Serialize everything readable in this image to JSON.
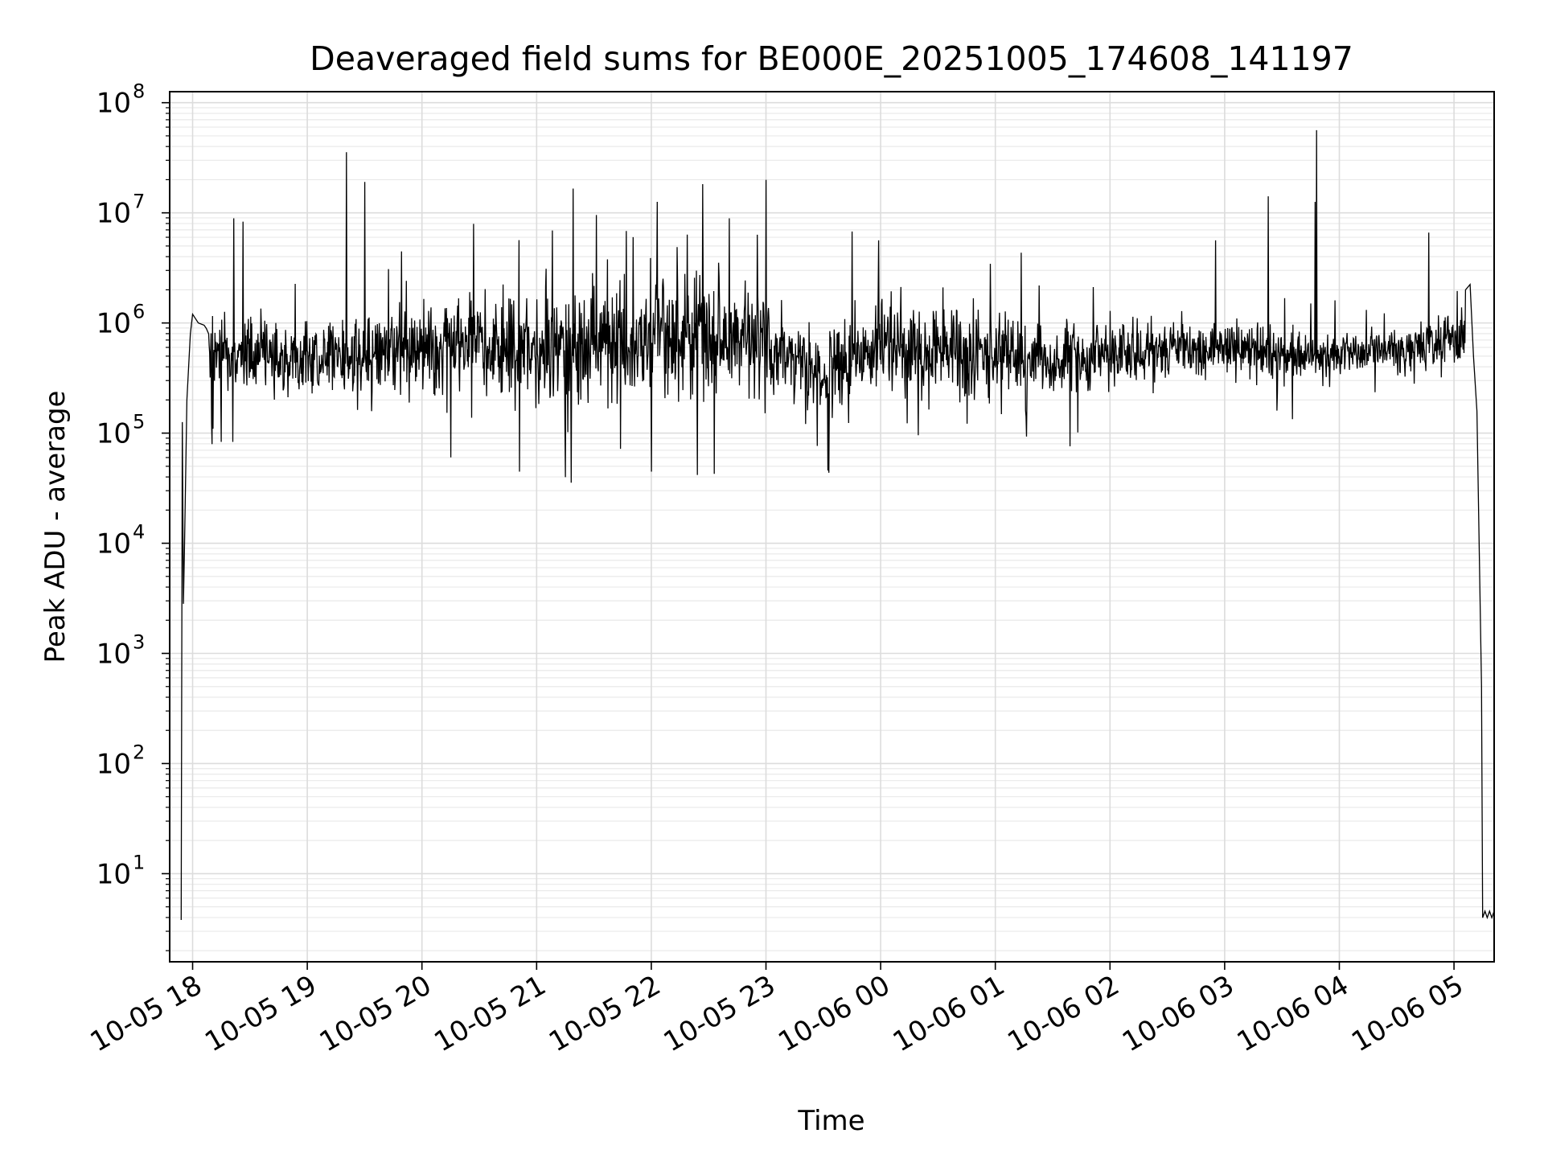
{
  "chart_data": {
    "type": "line",
    "title": "Deaveraged field sums for BE000E_20251005_174608_141197",
    "xlabel": "Time",
    "ylabel": "Peak ADU - average",
    "yscale": "log",
    "ylim_log10": [
      0.2,
      8.1
    ],
    "xlim_hours": [
      -0.2,
      11.35
    ],
    "grid": true,
    "line_color": "#000000",
    "x_ticks": [
      {
        "h": 0,
        "label": "10-05 18"
      },
      {
        "h": 1,
        "label": "10-05 19"
      },
      {
        "h": 2,
        "label": "10-05 20"
      },
      {
        "h": 3,
        "label": "10-05 21"
      },
      {
        "h": 4,
        "label": "10-05 22"
      },
      {
        "h": 5,
        "label": "10-05 23"
      },
      {
        "h": 6,
        "label": "10-06 00"
      },
      {
        "h": 7,
        "label": "10-06 01"
      },
      {
        "h": 8,
        "label": "10-06 02"
      },
      {
        "h": 9,
        "label": "10-06 03"
      },
      {
        "h": 10,
        "label": "10-06 04"
      },
      {
        "h": 11,
        "label": "10-06 05"
      }
    ],
    "y_ticks": [
      {
        "exp": 1,
        "base": "10",
        "sup": "1"
      },
      {
        "exp": 2,
        "base": "10",
        "sup": "2"
      },
      {
        "exp": 3,
        "base": "10",
        "sup": "3"
      },
      {
        "exp": 4,
        "base": "10",
        "sup": "4"
      },
      {
        "exp": 5,
        "base": "10",
        "sup": "5"
      },
      {
        "exp": 6,
        "base": "10",
        "sup": "6"
      },
      {
        "exp": 7,
        "base": "10",
        "sup": "7"
      },
      {
        "exp": 8,
        "base": "10",
        "sup": "8"
      }
    ],
    "envelope_log10": [
      {
        "h": 0.0,
        "lo": 5.45,
        "hi": 6.05
      },
      {
        "h": 0.5,
        "lo": 5.25,
        "hi": 6.15
      },
      {
        "h": 1.0,
        "lo": 5.3,
        "hi": 6.05
      },
      {
        "h": 1.5,
        "lo": 5.3,
        "hi": 6.2
      },
      {
        "h": 2.0,
        "lo": 5.35,
        "hi": 6.2
      },
      {
        "h": 2.5,
        "lo": 5.3,
        "hi": 6.4
      },
      {
        "h": 3.0,
        "lo": 5.15,
        "hi": 6.35
      },
      {
        "h": 3.5,
        "lo": 5.2,
        "hi": 6.4
      },
      {
        "h": 4.0,
        "lo": 5.15,
        "hi": 6.5
      },
      {
        "h": 4.5,
        "lo": 5.2,
        "hi": 6.55
      },
      {
        "h": 5.0,
        "lo": 5.3,
        "hi": 6.3
      },
      {
        "h": 5.5,
        "lo": 5.1,
        "hi": 5.95
      },
      {
        "h": 6.0,
        "lo": 5.35,
        "hi": 6.3
      },
      {
        "h": 6.5,
        "lo": 5.2,
        "hi": 6.15
      },
      {
        "h": 7.0,
        "lo": 5.35,
        "hi": 6.15
      },
      {
        "h": 7.5,
        "lo": 5.25,
        "hi": 6.05
      },
      {
        "h": 8.0,
        "lo": 5.4,
        "hi": 6.05
      },
      {
        "h": 8.5,
        "lo": 5.5,
        "hi": 6.1
      },
      {
        "h": 9.0,
        "lo": 5.5,
        "hi": 6.05
      },
      {
        "h": 9.5,
        "lo": 5.45,
        "hi": 6.0
      },
      {
        "h": 10.0,
        "lo": 5.5,
        "hi": 5.95
      },
      {
        "h": 10.5,
        "lo": 5.5,
        "hi": 6.0
      },
      {
        "h": 11.0,
        "lo": 5.55,
        "hi": 6.15
      }
    ],
    "anchors": [
      {
        "h": -0.1,
        "log": 0.58
      },
      {
        "h": -0.09,
        "log": 5.1
      },
      {
        "h": -0.08,
        "log": 3.45
      },
      {
        "h": -0.07,
        "log": 4.0
      },
      {
        "h": -0.05,
        "log": 5.3
      },
      {
        "h": -0.02,
        "log": 5.9
      },
      {
        "h": 0.0,
        "log": 6.08
      },
      {
        "h": 0.05,
        "log": 6.0
      },
      {
        "h": 0.1,
        "log": 5.98
      },
      {
        "h": 0.12,
        "log": 5.95
      },
      {
        "h": 0.14,
        "log": 5.9
      }
    ],
    "end_anchors": [
      {
        "h": 11.1,
        "log": 6.3
      },
      {
        "h": 11.14,
        "log": 6.35
      },
      {
        "h": 11.17,
        "log": 5.7
      },
      {
        "h": 11.2,
        "log": 5.2
      },
      {
        "h": 11.24,
        "log": 2.7
      },
      {
        "h": 11.25,
        "log": 0.6
      },
      {
        "h": 11.27,
        "log": 0.66
      },
      {
        "h": 11.29,
        "log": 0.6
      },
      {
        "h": 11.31,
        "log": 0.66
      },
      {
        "h": 11.33,
        "log": 0.6
      },
      {
        "h": 11.35,
        "log": 0.66
      }
    ],
    "spikes": [
      {
        "h": 0.36,
        "log": 6.95
      },
      {
        "h": 0.44,
        "log": 6.92
      },
      {
        "h": 1.34,
        "log": 7.55
      },
      {
        "h": 1.5,
        "log": 7.28
      },
      {
        "h": 1.82,
        "log": 6.65
      },
      {
        "h": 2.45,
        "log": 6.9
      },
      {
        "h": 2.85,
        "log": 7.08
      },
      {
        "h": 3.32,
        "log": 7.22
      },
      {
        "h": 3.52,
        "log": 6.98
      },
      {
        "h": 4.05,
        "log": 7.1
      },
      {
        "h": 4.45,
        "log": 7.26
      },
      {
        "h": 4.68,
        "log": 6.95
      },
      {
        "h": 5.0,
        "log": 7.3
      },
      {
        "h": 5.75,
        "log": 6.83
      },
      {
        "h": 9.38,
        "log": 7.15
      },
      {
        "h": 9.8,
        "log": 7.75
      },
      {
        "h": 9.79,
        "log": 7.1
      },
      {
        "h": 10.78,
        "log": 6.82
      },
      {
        "h": 8.92,
        "log": 6.75
      }
    ],
    "dips": [
      {
        "h": 0.17,
        "log": 4.9
      },
      {
        "h": 0.25,
        "log": 4.92
      },
      {
        "h": 0.35,
        "log": 4.92
      },
      {
        "h": 2.85,
        "log": 4.65
      },
      {
        "h": 3.25,
        "log": 4.6
      },
      {
        "h": 3.3,
        "log": 4.55
      },
      {
        "h": 4.0,
        "log": 4.65
      },
      {
        "h": 4.4,
        "log": 4.62
      },
      {
        "h": 4.55,
        "log": 4.63
      },
      {
        "h": 5.55,
        "log": 4.64
      },
      {
        "h": 5.54,
        "log": 4.66
      },
      {
        "h": 7.65,
        "log": 4.88
      },
      {
        "h": 2.25,
        "log": 4.78
      }
    ]
  }
}
